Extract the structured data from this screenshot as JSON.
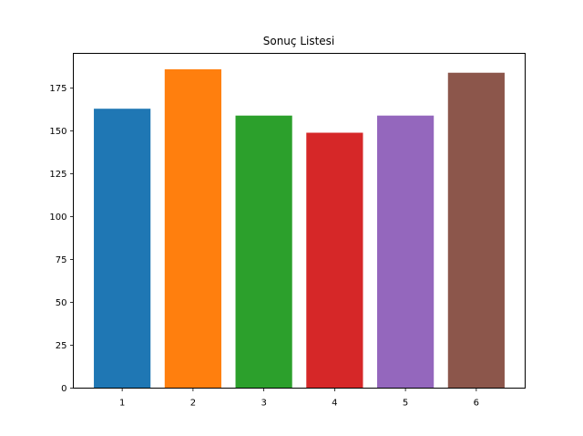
{
  "chart_data": {
    "type": "bar",
    "title": "Sonuç Listesi",
    "xlabel": "",
    "ylabel": "",
    "categories": [
      "1",
      "2",
      "3",
      "4",
      "5",
      "6"
    ],
    "values": [
      163,
      186,
      159,
      149,
      159,
      184
    ],
    "colors": [
      "#1f77b4",
      "#ff7f0e",
      "#2ca02c",
      "#d62728",
      "#9467bd",
      "#8c564b"
    ],
    "ylim": [
      0,
      195.3
    ],
    "yticks": [
      0,
      25,
      50,
      75,
      100,
      125,
      150,
      175
    ],
    "grid": false,
    "legend": "none"
  }
}
